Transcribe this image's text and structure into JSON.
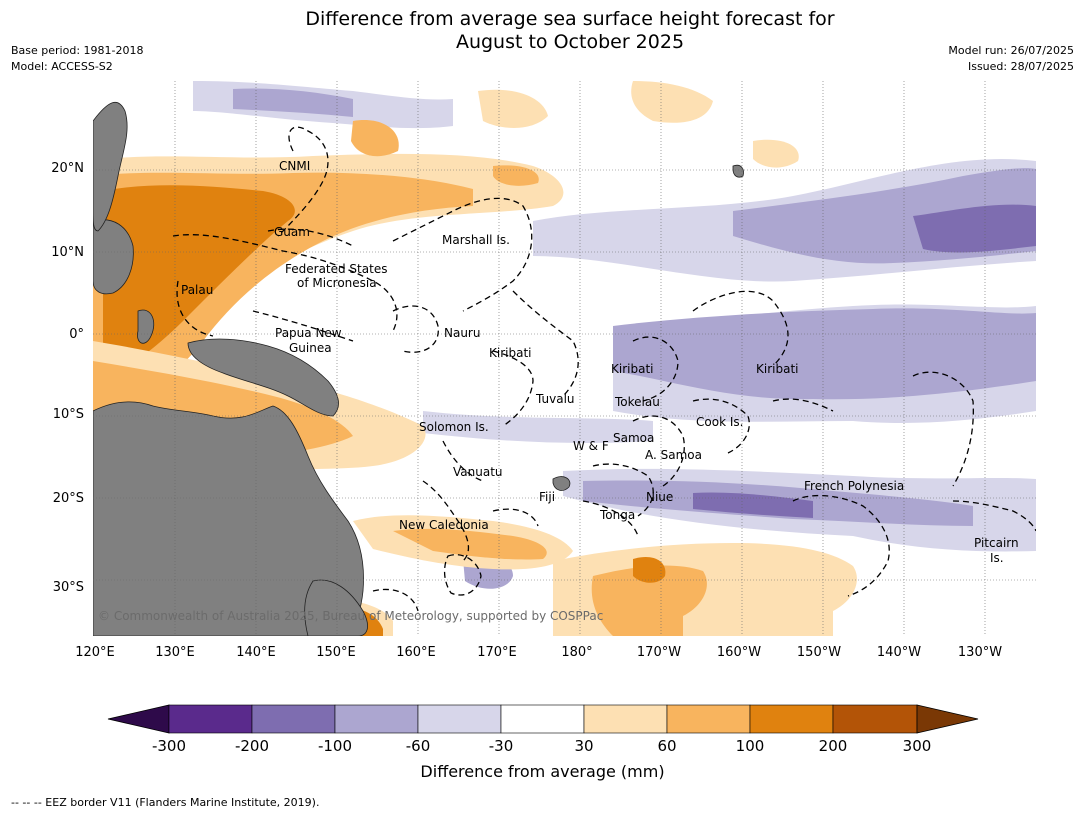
{
  "header": {
    "title_line1": "Difference from average sea surface height forecast for",
    "title_line2": "August to October 2025",
    "base_period": "Base period: 1981-2018",
    "model": "Model: ACCESS-S2",
    "model_run": "Model run: 26/07/2025",
    "issued": "Issued: 28/07/2025"
  },
  "map": {
    "lat_labels": [
      "20°N",
      "10°N",
      "0°",
      "10°S",
      "20°S",
      "30°S"
    ],
    "lon_labels": [
      "120°E",
      "130°E",
      "140°E",
      "150°E",
      "160°E",
      "170°E",
      "180°",
      "170°W",
      "160°W",
      "150°W",
      "140°W",
      "130°W"
    ],
    "regions": [
      "CNMI",
      "Guam",
      "Marshall Is.",
      "Federated States",
      "of Micronesia",
      "Palau",
      "Papua New",
      "Guinea",
      "Nauru",
      "Kiribati",
      "Kiribati",
      "Kiribati",
      "Tuvalu",
      "Tokelau",
      "Solomon Is.",
      "W & F",
      "Samoa",
      "A. Samoa",
      "Cook Is.",
      "Vanuatu",
      "Fiji",
      "Niue",
      "Tonga",
      "French Polynesia",
      "New Caledonia",
      "Pitcairn",
      "Is."
    ],
    "copyright": "© Commonwealth of Australia 2025, Bureau of Meteorology, supported by COSPPac"
  },
  "colorbar": {
    "title": "Difference from average (mm)",
    "ticks": [
      "-300",
      "-200",
      "-100",
      "-60",
      "-30",
      "30",
      "60",
      "100",
      "200",
      "300"
    ],
    "colors": [
      "#2e0a4a",
      "#5a2a8c",
      "#7e6db0",
      "#aca6d0",
      "#d7d6ea",
      "#ffffff",
      "#fde0b3",
      "#f8b45e",
      "#e0820f",
      "#b35407",
      "#7a3805"
    ]
  },
  "footnote": "-- -- -- EEZ border V11 (Flanders Marine Institute, 2019)."
}
